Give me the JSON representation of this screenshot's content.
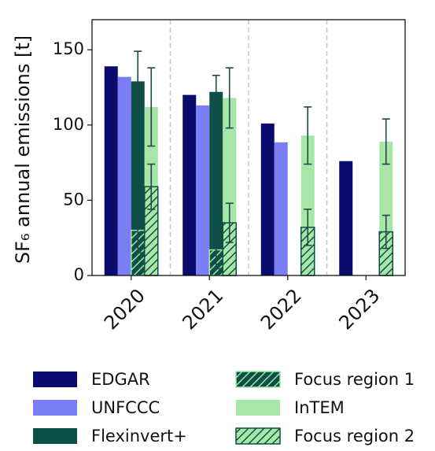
{
  "chart_data": {
    "type": "bar",
    "ylabel": "SF₆ annual emissions [t]",
    "categories": [
      "2020",
      "2021",
      "2022",
      "2023"
    ],
    "ylim": [
      0,
      170
    ],
    "yticks": [
      0,
      50,
      100,
      150
    ],
    "series": [
      {
        "name": "EDGAR",
        "color": "#0b0b6e",
        "values": [
          139,
          120,
          101,
          76
        ]
      },
      {
        "name": "UNFCCC",
        "color": "#7b7df5",
        "values": [
          132,
          113,
          88.5,
          null
        ]
      },
      {
        "name": "Flexinvert+",
        "color": "#0b4f47",
        "values": [
          129,
          122,
          null,
          null
        ],
        "errors": [
          20,
          11,
          null,
          null
        ]
      },
      {
        "name": "Focus region 1",
        "color": "#0b4f47",
        "hatch": "#a8e6a8",
        "values": [
          30,
          17,
          null,
          null
        ],
        "errors": [
          15,
          12.5,
          null,
          null
        ]
      },
      {
        "name": "InTEM",
        "color": "#a8e6a8",
        "values": [
          112,
          118,
          93,
          89
        ],
        "errors": [
          26,
          20,
          19,
          15
        ]
      },
      {
        "name": "Focus region 2",
        "color": "#a8e6a8",
        "hatch": "#0b4f47",
        "values": [
          59,
          35,
          32,
          29
        ],
        "errors": [
          15,
          13,
          12,
          11
        ]
      }
    ]
  }
}
